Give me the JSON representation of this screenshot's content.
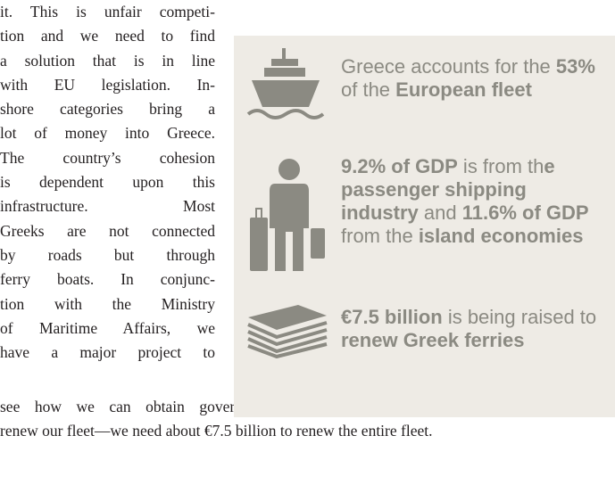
{
  "article": {
    "column_lines": [
      "it. This is unfair competi-",
      "tion and we need to find",
      "a solution that is in line",
      "with EU legislation. In-",
      "shore categories bring a",
      "lot of money into Greece.",
      "The country’s cohesion",
      "is dependent upon this",
      "infrastructure. Most",
      "Greeks are not connected",
      "by roads but through",
      "ferry boats. In conjunc-",
      "tion with the Ministry",
      "of Maritime Affairs, we",
      "have a major project to"
    ],
    "full_lines": [
      "see how we can obtain government and EU grants or loans, so that we can",
      "renew our fleet—we need about €7.5 billion to renew the entire fleet."
    ]
  },
  "infobox": {
    "items": [
      {
        "parts": [
          {
            "text": "Greece accounts for the ",
            "bold": false
          },
          {
            "text": "53%",
            "bold": true
          },
          {
            "text": " of the ",
            "bold": false
          },
          {
            "text": "European fleet",
            "bold": true
          }
        ]
      },
      {
        "parts": [
          {
            "text": "9.2% of GDP",
            "bold": true
          },
          {
            "text": " is from th",
            "bold": false
          },
          {
            "text": "e passenger shipping industry",
            "bold": true
          },
          {
            "text": " and ",
            "bold": false
          },
          {
            "text": "11.6% of GDP",
            "bold": true
          },
          {
            "text": " from the ",
            "bold": false
          },
          {
            "text": "island economies",
            "bold": true
          }
        ]
      },
      {
        "parts": [
          {
            "text": "€7.5 billion",
            "bold": true
          },
          {
            "text": " is being raised to ",
            "bold": false
          },
          {
            "text": "renew Greek ferries",
            "bold": true
          }
        ]
      }
    ]
  }
}
